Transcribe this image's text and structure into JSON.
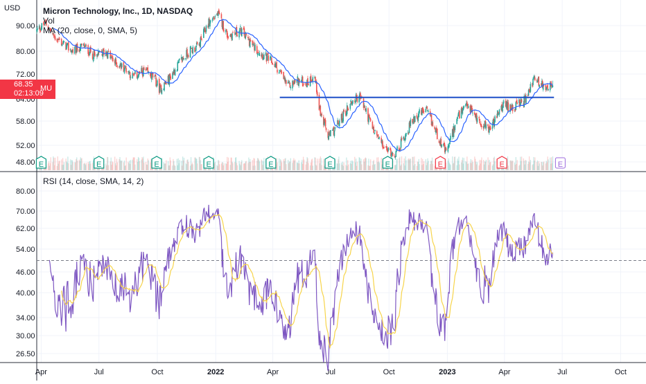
{
  "header": {
    "unit": "USD",
    "title": "Micron Technology, Inc., 1D, NASDAQ",
    "volume_label": "Vol",
    "ma_label": "MA (20, close, 0, SMA, 5)",
    "rsi_label": "RSI (14, close, SMA, 14, 2)"
  },
  "price_badge": {
    "price": "68.35",
    "countdown": "02:13:09",
    "symbol": "MU",
    "color": "#f23645"
  },
  "colors": {
    "up": "#26a69a",
    "down": "#ef5350",
    "ma": "#2962ff",
    "rsi": "#7e57c2",
    "rsi_ma": "#f7d44a",
    "neckline": "#1e50c8",
    "earnings_up": "#089981",
    "earnings_down": "#f23645",
    "earnings_future": "#9c6ade",
    "grid": "#f0f3fa",
    "axis_text": "#131722"
  },
  "chart_data": [
    {
      "type": "candlestick",
      "title": "Micron Technology, Inc., 1D, NASDAQ",
      "xlabel": "",
      "ylabel": "USD",
      "ylim": [
        46,
        98
      ],
      "y_ticks": [
        48.0,
        52.0,
        58.0,
        64.0,
        72.0,
        80.0,
        90.0
      ],
      "x_ticks": [
        "Apr",
        "Jul",
        "Oct",
        "2022",
        "Apr",
        "Jul",
        "Oct",
        "2023",
        "Apr",
        "Jul",
        "Oct"
      ],
      "x_tick_dates": [
        "2021-04-01",
        "2021-07-01",
        "2021-10-01",
        "2022-01-01",
        "2022-04-01",
        "2022-07-01",
        "2022-10-01",
        "2023-01-01",
        "2023-04-01",
        "2023-07-01",
        "2023-10-01"
      ],
      "x_range": [
        "2021-03-25",
        "2023-11-10"
      ],
      "close_path": [
        [
          "2021-03-25",
          88
        ],
        [
          "2021-04-08",
          91
        ],
        [
          "2021-04-20",
          86
        ],
        [
          "2021-05-05",
          83
        ],
        [
          "2021-05-20",
          80
        ],
        [
          "2021-06-07",
          82
        ],
        [
          "2021-06-25",
          78
        ],
        [
          "2021-07-12",
          80
        ],
        [
          "2021-07-26",
          76
        ],
        [
          "2021-08-12",
          74
        ],
        [
          "2021-08-24",
          71
        ],
        [
          "2021-09-10",
          73
        ],
        [
          "2021-09-25",
          71
        ],
        [
          "2021-10-05",
          67
        ],
        [
          "2021-10-18",
          70
        ],
        [
          "2021-11-05",
          76
        ],
        [
          "2021-11-20",
          80
        ],
        [
          "2021-12-05",
          82
        ],
        [
          "2021-12-20",
          91
        ],
        [
          "2022-01-04",
          95
        ],
        [
          "2022-01-20",
          86
        ],
        [
          "2022-02-10",
          88
        ],
        [
          "2022-03-01",
          82
        ],
        [
          "2022-03-20",
          78
        ],
        [
          "2022-04-05",
          75
        ],
        [
          "2022-04-25",
          68
        ],
        [
          "2022-05-10",
          70
        ],
        [
          "2022-05-25",
          69
        ],
        [
          "2022-06-05",
          72
        ],
        [
          "2022-06-15",
          60
        ],
        [
          "2022-06-28",
          54
        ],
        [
          "2022-07-12",
          57
        ],
        [
          "2022-08-02",
          63
        ],
        [
          "2022-08-16",
          65
        ],
        [
          "2022-09-05",
          56
        ],
        [
          "2022-09-25",
          51
        ],
        [
          "2022-10-12",
          50
        ],
        [
          "2022-10-28",
          55
        ],
        [
          "2022-11-10",
          59
        ],
        [
          "2022-11-28",
          61
        ],
        [
          "2022-12-12",
          56
        ],
        [
          "2022-12-30",
          50
        ],
        [
          "2023-01-17",
          59
        ],
        [
          "2023-02-02",
          62
        ],
        [
          "2023-02-20",
          58
        ],
        [
          "2023-03-10",
          56
        ],
        [
          "2023-03-28",
          62
        ],
        [
          "2023-04-20",
          62
        ],
        [
          "2023-05-05",
          64
        ],
        [
          "2023-05-18",
          71
        ],
        [
          "2023-06-01",
          68
        ],
        [
          "2023-06-16",
          68.35
        ]
      ],
      "ma_period": 20,
      "neckline": {
        "y": 64.5,
        "from": "2022-04-12",
        "to": "2023-06-18"
      },
      "earnings": [
        {
          "date": "2021-04-01",
          "label": "E",
          "kind": "up"
        },
        {
          "date": "2021-07-01",
          "label": "E",
          "kind": "up"
        },
        {
          "date": "2021-09-30",
          "label": "E",
          "kind": "up"
        },
        {
          "date": "2021-12-21",
          "label": "E",
          "kind": "up"
        },
        {
          "date": "2022-03-29",
          "label": "E",
          "kind": "up"
        },
        {
          "date": "2022-06-30",
          "label": "E",
          "kind": "up"
        },
        {
          "date": "2022-09-29",
          "label": "E",
          "kind": "up"
        },
        {
          "date": "2022-12-21",
          "label": "E",
          "kind": "down"
        },
        {
          "date": "2023-03-28",
          "label": "E",
          "kind": "down"
        },
        {
          "date": "2023-06-28",
          "label": "E",
          "kind": "future"
        }
      ]
    },
    {
      "type": "line",
      "title": "RSI (14, close, SMA, 14, 2)",
      "ylim": [
        25,
        82
      ],
      "y_ticks": [
        26.5,
        30.0,
        34.0,
        40.0,
        46.0,
        54.0,
        62.0,
        70.0,
        80.0
      ],
      "reference_line": 50,
      "series": [
        {
          "name": "RSI",
          "source": "close",
          "period": 14
        },
        {
          "name": "RSI MA",
          "source": "RSI",
          "period": 14
        }
      ]
    }
  ]
}
